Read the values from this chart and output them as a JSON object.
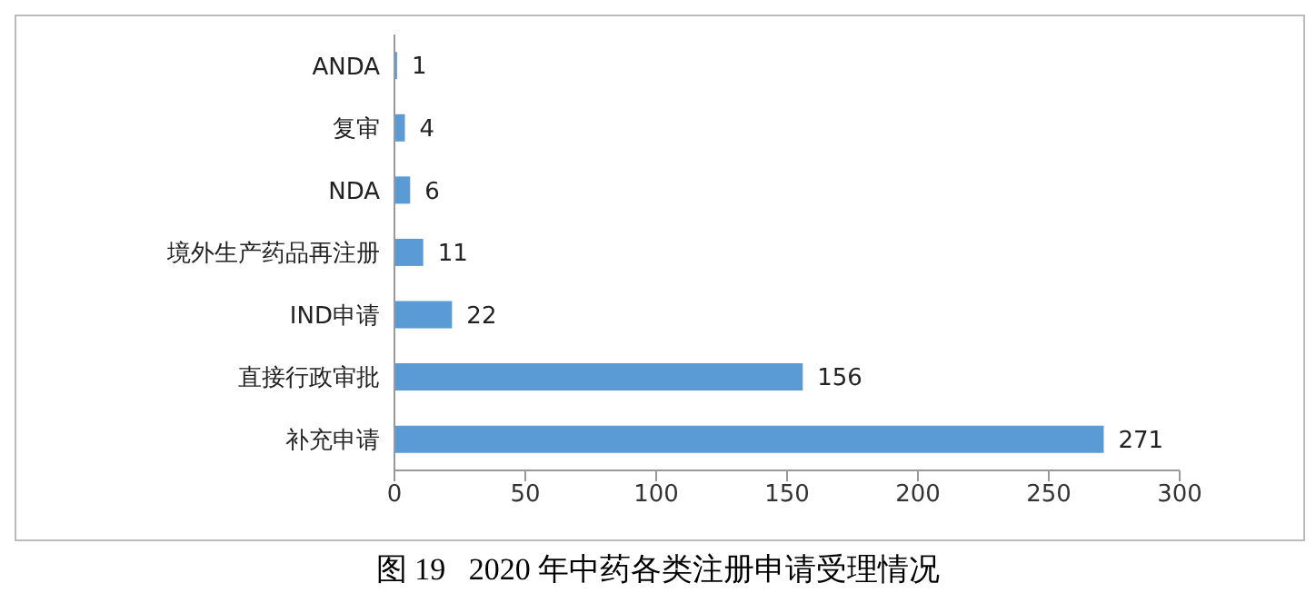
{
  "chart_data": {
    "type": "bar",
    "orientation": "horizontal",
    "title": "图 19   2020 年中药各类注册申请受理情况",
    "categories": [
      "ANDA",
      "复审",
      "NDA",
      "境外生产药品再注册",
      "IND申请",
      "直接行政审批",
      "补充申请"
    ],
    "values": [
      1,
      4,
      6,
      11,
      22,
      156,
      271
    ],
    "color": "#5b9bd5",
    "xlim": [
      0,
      300
    ],
    "xticks": [
      0,
      50,
      100,
      150,
      200,
      250,
      300
    ],
    "grid": false,
    "data_labels": true
  }
}
